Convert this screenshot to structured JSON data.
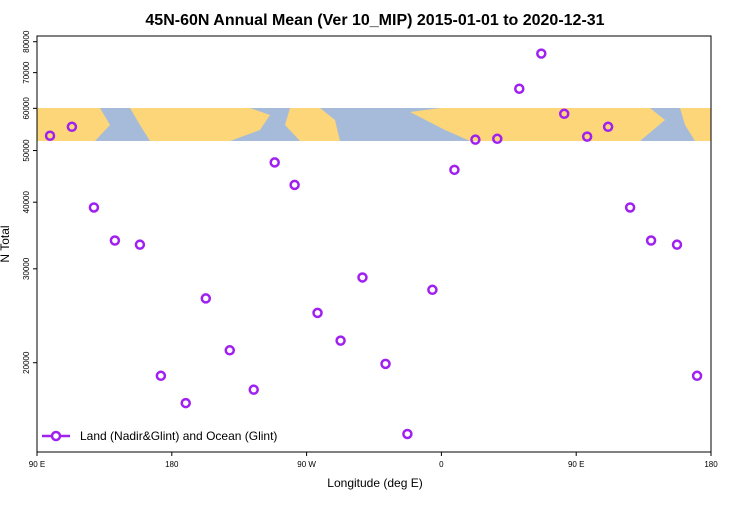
{
  "chart_data": {
    "type": "scatter",
    "title": "45N-60N Annual Mean (Ver 10_MIP)   2015-01-01 to 2020-12-31",
    "x_label": "Longitude (deg E)",
    "y_label": "N Total",
    "log_y": true,
    "xlim": [
      90,
      540
    ],
    "ylim": [
      13600,
      82000
    ],
    "xticks": [
      {
        "value": 90,
        "label": "90 E"
      },
      {
        "value": 180,
        "label": "180"
      },
      {
        "value": 270,
        "label": "90 W"
      },
      {
        "value": 360,
        "label": "0"
      },
      {
        "value": 450,
        "label": "90 E"
      },
      {
        "value": 540,
        "label": "180"
      }
    ],
    "yticks": [
      20000,
      30000,
      40000,
      50000,
      60000,
      70000,
      80000
    ],
    "legend_position": "bottom-left",
    "series": [
      {
        "name": "Land (Nadir&Glint) and Ocean (Glint)",
        "color": "#a020f0",
        "x": [
          98.7,
          113.3,
          128,
          142,
          158.7,
          172.7,
          189.3,
          202.7,
          218.7,
          234.7,
          248.7,
          262,
          277.3,
          292.7,
          307.3,
          322.7,
          337.3,
          354,
          368.7,
          382.7,
          397.3,
          412,
          426.7,
          442,
          457.3,
          471.3,
          486,
          500,
          517.3,
          530.7
        ],
        "values": [
          53300,
          55400,
          39100,
          33900,
          33300,
          18900,
          16800,
          26400,
          21100,
          17800,
          47500,
          43100,
          24800,
          22000,
          28900,
          19900,
          14700,
          27400,
          46000,
          52400,
          52600,
          65300,
          76000,
          58600,
          53100,
          55400,
          39100,
          33900,
          33300,
          18900
        ]
      }
    ]
  }
}
